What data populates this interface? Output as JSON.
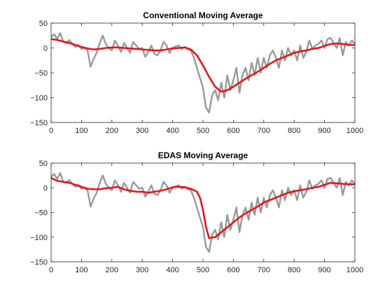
{
  "colors": {
    "raw": "#999999",
    "smooth": "#e8141b"
  },
  "chart_data": [
    {
      "type": "line",
      "title": "Conventional Moving Average",
      "xlim": [
        0,
        1000
      ],
      "ylim": [
        -150,
        50
      ],
      "xticks": [
        0,
        100,
        200,
        300,
        400,
        500,
        600,
        700,
        800,
        900,
        1000
      ],
      "yticks": [
        50,
        0,
        -50,
        -100,
        -150
      ],
      "xtick_labels": [
        "0",
        "100",
        "200",
        "300",
        "400",
        "500",
        "600",
        "700",
        "800",
        "900",
        "1000"
      ],
      "ytick_labels": [
        "50",
        "0",
        "−50",
        "−100",
        "−150"
      ],
      "grid": false,
      "series": [
        {
          "x": [
            0,
            10,
            20,
            30,
            40,
            50,
            60,
            70,
            80,
            90,
            100,
            110,
            120,
            130,
            140,
            150,
            160,
            170,
            180,
            190,
            200,
            210,
            220,
            230,
            240,
            250,
            260,
            270,
            280,
            290,
            300,
            310,
            320,
            330,
            340,
            350,
            360,
            370,
            380,
            390,
            400,
            410,
            420,
            430,
            440,
            450,
            460,
            470,
            480,
            490,
            500,
            510,
            520,
            530,
            540,
            550,
            560,
            570,
            580,
            590,
            600,
            610,
            620,
            630,
            640,
            650,
            660,
            670,
            680,
            690,
            700,
            710,
            720,
            730,
            740,
            750,
            760,
            770,
            780,
            790,
            800,
            810,
            820,
            830,
            840,
            850,
            860,
            870,
            880,
            890,
            900,
            910,
            920,
            930,
            940,
            950,
            960,
            970,
            980,
            990,
            1000
          ],
          "y": [
            22,
            28,
            18,
            30,
            12,
            10,
            16,
            8,
            2,
            6,
            -2,
            0,
            -5,
            -38,
            -22,
            -10,
            10,
            25,
            8,
            0,
            -5,
            15,
            5,
            -8,
            10,
            0,
            -10,
            12,
            5,
            -2,
            0,
            -18,
            -8,
            5,
            -12,
            -15,
            -5,
            12,
            5,
            -10,
            0,
            3,
            5,
            -2,
            2,
            -3,
            -5,
            -20,
            -40,
            -60,
            -80,
            -120,
            -130,
            -95,
            -85,
            -105,
            -70,
            -100,
            -55,
            -85,
            -65,
            -40,
            -90,
            -55,
            -40,
            -65,
            -30,
            -55,
            -20,
            -50,
            -20,
            -40,
            -15,
            -5,
            -20,
            -40,
            -5,
            -25,
            0,
            -15,
            -5,
            -25,
            5,
            -20,
            -8,
            15,
            -2,
            5,
            8,
            15,
            0,
            18,
            20,
            10,
            0,
            20,
            -15,
            12,
            5,
            15,
            8
          ]
        },
        {
          "x": [
            0,
            20,
            40,
            60,
            80,
            100,
            120,
            140,
            160,
            180,
            200,
            220,
            240,
            260,
            280,
            300,
            320,
            340,
            360,
            380,
            400,
            420,
            440,
            460,
            480,
            500,
            520,
            540,
            560,
            580,
            600,
            620,
            640,
            660,
            680,
            700,
            720,
            740,
            760,
            780,
            800,
            820,
            840,
            860,
            880,
            900,
            920,
            940,
            960,
            980,
            1000
          ],
          "y": [
            18,
            16,
            13,
            10,
            6,
            2,
            -1,
            -3,
            -2,
            0,
            1,
            1,
            0,
            -1,
            -2,
            -3,
            -4,
            -5,
            -5,
            -3,
            -1,
            0,
            1,
            -3,
            -15,
            -35,
            -58,
            -78,
            -88,
            -85,
            -78,
            -70,
            -62,
            -55,
            -48,
            -40,
            -32,
            -25,
            -20,
            -15,
            -10,
            -7,
            -5,
            -2,
            0,
            4,
            8,
            9,
            8,
            6,
            6
          ]
        }
      ]
    },
    {
      "type": "line",
      "title": "EDAS Moving Average",
      "xlim": [
        0,
        1000
      ],
      "ylim": [
        -150,
        50
      ],
      "xticks": [
        0,
        100,
        200,
        300,
        400,
        500,
        600,
        700,
        800,
        900,
        1000
      ],
      "yticks": [
        50,
        0,
        -50,
        -100,
        -150
      ],
      "xtick_labels": [
        "0",
        "100",
        "200",
        "300",
        "400",
        "500",
        "600",
        "700",
        "800",
        "900",
        "1000"
      ],
      "ytick_labels": [
        "50",
        "0",
        "−50",
        "−100",
        "−150"
      ],
      "grid": false,
      "series": [
        {
          "x": [
            0,
            10,
            20,
            30,
            40,
            50,
            60,
            70,
            80,
            90,
            100,
            110,
            120,
            130,
            140,
            150,
            160,
            170,
            180,
            190,
            200,
            210,
            220,
            230,
            240,
            250,
            260,
            270,
            280,
            290,
            300,
            310,
            320,
            330,
            340,
            350,
            360,
            370,
            380,
            390,
            400,
            410,
            420,
            430,
            440,
            450,
            460,
            470,
            480,
            490,
            500,
            510,
            520,
            530,
            540,
            550,
            560,
            570,
            580,
            590,
            600,
            610,
            620,
            630,
            640,
            650,
            660,
            670,
            680,
            690,
            700,
            710,
            720,
            730,
            740,
            750,
            760,
            770,
            780,
            790,
            800,
            810,
            820,
            830,
            840,
            850,
            860,
            870,
            880,
            890,
            900,
            910,
            920,
            930,
            940,
            950,
            960,
            970,
            980,
            990,
            1000
          ],
          "y": [
            22,
            28,
            18,
            30,
            12,
            10,
            16,
            8,
            2,
            6,
            -2,
            0,
            -5,
            -38,
            -22,
            -10,
            10,
            25,
            8,
            0,
            -5,
            15,
            5,
            -8,
            10,
            0,
            -10,
            12,
            5,
            -2,
            0,
            -18,
            -8,
            5,
            -12,
            -15,
            -5,
            12,
            5,
            -10,
            0,
            3,
            5,
            -2,
            2,
            -3,
            -5,
            -20,
            -40,
            -60,
            -80,
            -120,
            -130,
            -95,
            -85,
            -105,
            -70,
            -100,
            -55,
            -85,
            -65,
            -40,
            -90,
            -55,
            -40,
            -65,
            -30,
            -55,
            -20,
            -50,
            -20,
            -40,
            -15,
            -5,
            -20,
            -40,
            -5,
            -25,
            0,
            -15,
            -5,
            -25,
            5,
            -20,
            -8,
            15,
            -2,
            5,
            8,
            15,
            0,
            18,
            20,
            10,
            0,
            20,
            -15,
            12,
            5,
            15,
            8
          ]
        },
        {
          "x": [
            0,
            20,
            40,
            60,
            80,
            100,
            120,
            140,
            160,
            180,
            200,
            220,
            240,
            260,
            280,
            300,
            320,
            340,
            360,
            380,
            400,
            420,
            440,
            460,
            480,
            490,
            500,
            510,
            520,
            540,
            560,
            580,
            600,
            620,
            640,
            660,
            680,
            700,
            720,
            740,
            760,
            780,
            800,
            820,
            840,
            860,
            880,
            900,
            920,
            940,
            960,
            980,
            1000
          ],
          "y": [
            20,
            14,
            12,
            10,
            6,
            2,
            -2,
            -3,
            -3,
            -1,
            0,
            2,
            -3,
            -6,
            -8,
            -8,
            -10,
            -8,
            -6,
            -3,
            1,
            2,
            1,
            -2,
            -8,
            -20,
            -45,
            -80,
            -102,
            -100,
            -90,
            -80,
            -70,
            -60,
            -52,
            -45,
            -38,
            -30,
            -25,
            -20,
            -15,
            -10,
            -7,
            -5,
            -3,
            0,
            2,
            6,
            10,
            9,
            8,
            7,
            7
          ]
        }
      ]
    }
  ]
}
